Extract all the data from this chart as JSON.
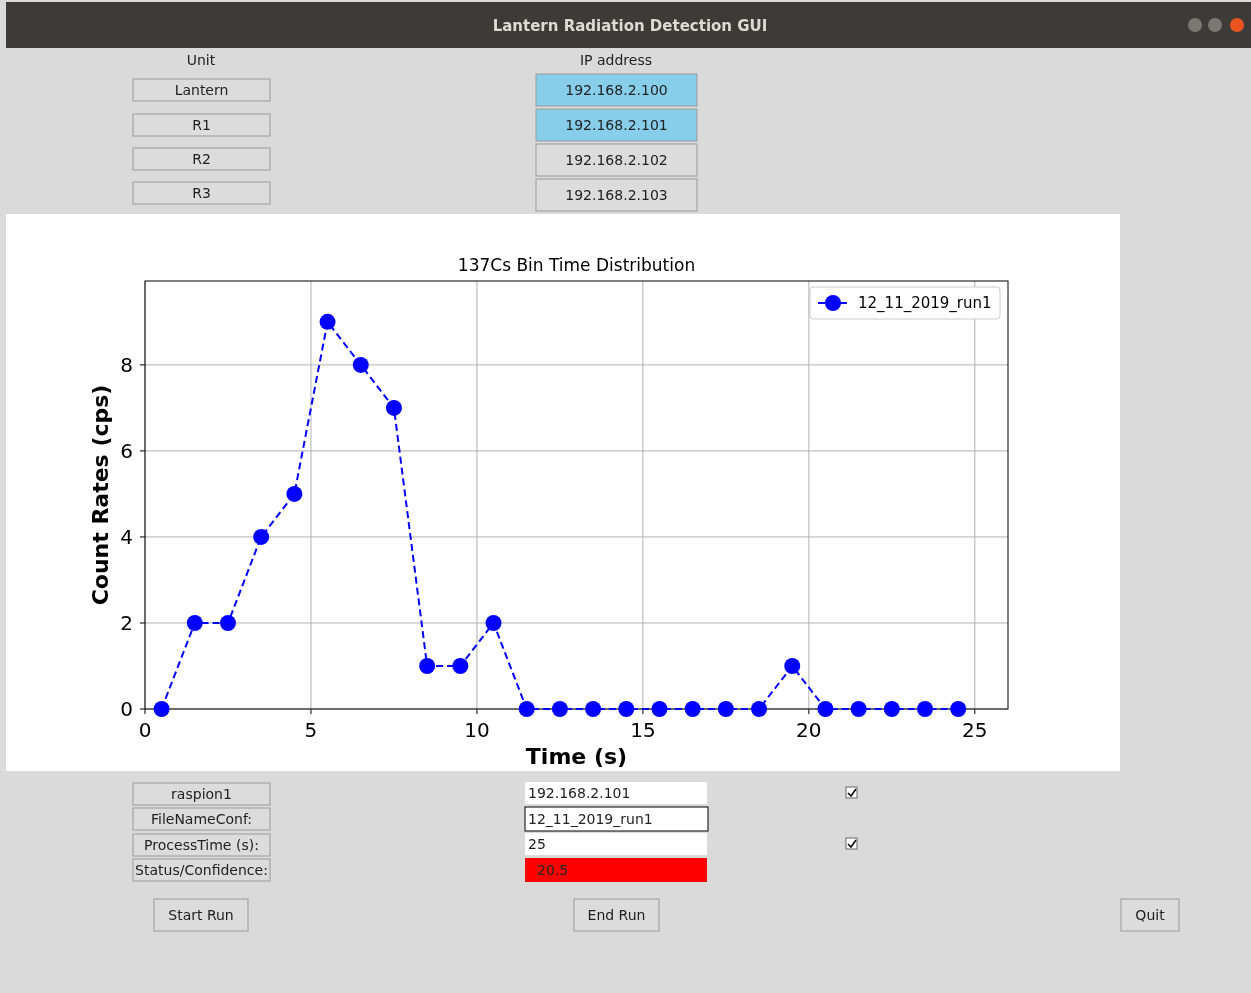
{
  "chart_data": [
    {
      "type": "other",
      "title": "Lantern Radiation Detection GUI",
      "annotations": [
        "Unit",
        "IP address",
        "Lantern",
        "R1",
        "R2",
        "R3",
        "192.168.2.100",
        "192.168.2.101",
        "192.168.2.102",
        "192.168.2.103",
        "raspion1",
        "FileNameConf:",
        "ProcessTime (s):",
        "Status/Confidence:",
        "192.168.2.101",
        "12_11_2019_run1",
        "25",
        "20.5",
        "Start Run",
        "End Run",
        "Quit"
      ]
    },
    {
      "type": "line",
      "title": "137Cs Bin Time Distribution",
      "xlabel": "Time (s)",
      "ylabel": "Count Rates (cps)",
      "x": [
        0.5,
        1.5,
        2.5,
        3.5,
        4.5,
        5.5,
        6.5,
        7.5,
        8.5,
        9.5,
        10.5,
        11.5,
        12.5,
        13.5,
        14.5,
        15.5,
        16.5,
        17.5,
        18.5,
        19.5,
        20.5,
        21.5,
        22.5,
        23.5,
        24.5
      ],
      "series": [
        {
          "name": "12_11_2019_run1",
          "color": "#0000ff",
          "values": [
            0,
            2,
            2,
            4,
            5,
            9,
            8,
            7,
            1,
            1,
            2,
            0,
            0,
            0,
            0,
            0,
            0,
            0,
            0,
            1,
            0,
            0,
            0,
            0,
            0
          ]
        }
      ],
      "xlim": [
        0,
        26
      ],
      "ylim": [
        0,
        9.95
      ],
      "xticks": [
        0,
        5,
        10,
        15,
        20,
        25
      ],
      "yticks": [
        0,
        2,
        4,
        6,
        8
      ],
      "grid": true,
      "legend": "top right",
      "marker": "circle",
      "line_style": "dashed"
    }
  ]
}
